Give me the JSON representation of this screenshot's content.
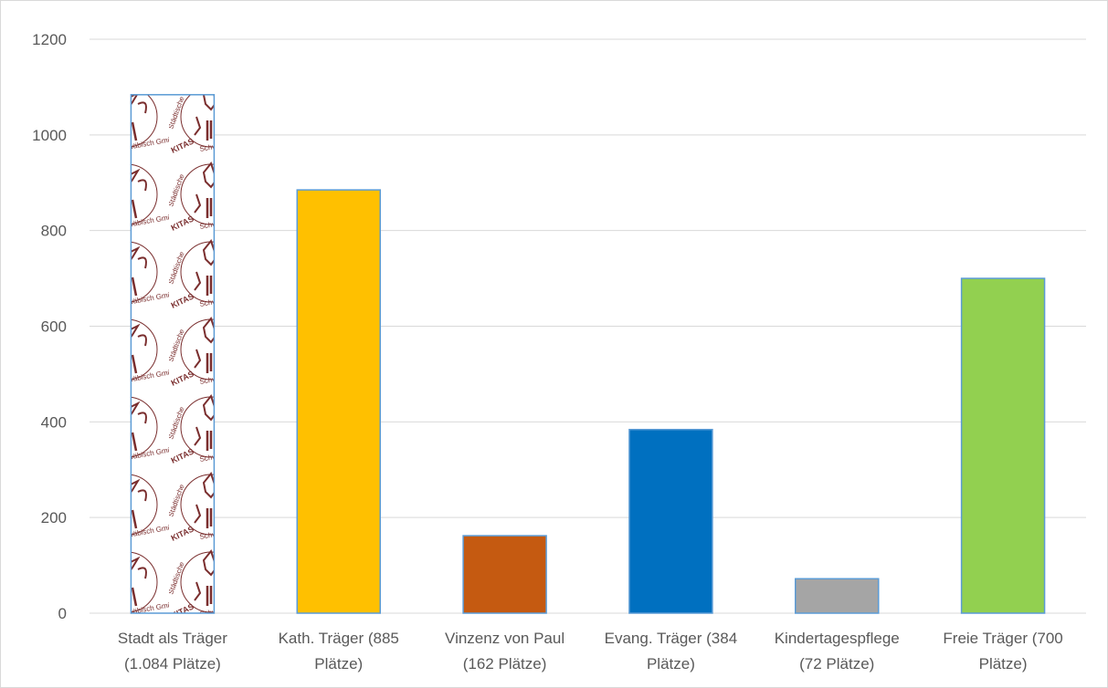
{
  "chart_data": {
    "type": "bar",
    "title": "",
    "xlabel": "",
    "ylabel": "",
    "ylim": [
      0,
      1200
    ],
    "yticks": [
      0,
      200,
      400,
      600,
      800,
      1000,
      1200
    ],
    "grid": true,
    "legend": "none",
    "categories": [
      [
        "Stadt als Träger",
        "(1.084 Plätze)"
      ],
      [
        "Kath. Träger (885",
        "Plätze)"
      ],
      [
        "Vinzenz von Paul",
        "(162 Plätze)"
      ],
      [
        "Evang. Träger (384",
        "Plätze)"
      ],
      [
        "Kindertagespflege",
        "(72 Plätze)"
      ],
      [
        "Freie Träger (700",
        "Plätze)"
      ]
    ],
    "values": [
      1084,
      885,
      162,
      384,
      72,
      700
    ],
    "bar_colors": [
      "#ffffff",
      "#ffc000",
      "#c55a11",
      "#0070c0",
      "#a5a5a5",
      "#92d050"
    ],
    "bar_fill_styles": [
      "logo-pattern",
      "solid",
      "solid",
      "solid",
      "solid",
      "solid"
    ],
    "logo_pattern_text": [
      "Städtische",
      "KITAS",
      "Schwäbisch Gmünd"
    ],
    "bar_stroke": "#5b9bd5",
    "grid_color": "#d9d9d9",
    "logo_color": "#7a2e2e"
  }
}
